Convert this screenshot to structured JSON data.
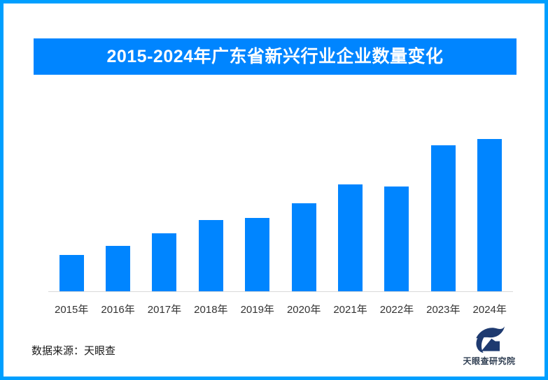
{
  "colors": {
    "page-bg": "#FFFFFF",
    "border-blue": "#009FFF",
    "accent-blue": "#0085FF",
    "axis-gray": "#D9D9D9",
    "label-gray": "#333333",
    "text-dark": "#1A1A1A",
    "logo-navy": "#1E3A70",
    "logo-text": "#2F3E52"
  },
  "header": {
    "title": "2015-2024年广东省新兴行业企业数量变化"
  },
  "chart_data": {
    "type": "bar",
    "title": "2015-2024年广东省新兴行业企业数量变化",
    "categories": [
      "2015年",
      "2016年",
      "2017年",
      "2018年",
      "2019年",
      "2020年",
      "2021年",
      "2022年",
      "2023年",
      "2024年"
    ],
    "values": [
      24,
      30,
      38,
      47,
      48,
      58,
      70,
      69,
      96,
      100
    ],
    "value_unit": "relative-height-percent (no numeric axis or data labels shown in image)",
    "ylim": [
      0,
      100
    ],
    "grid": false,
    "legend": false,
    "bar_color": "#0085FF",
    "axis_line_color": "#D9D9D9"
  },
  "footer": {
    "source_text": "数据来源：天眼查",
    "logo_text": "天眼查研究院"
  }
}
